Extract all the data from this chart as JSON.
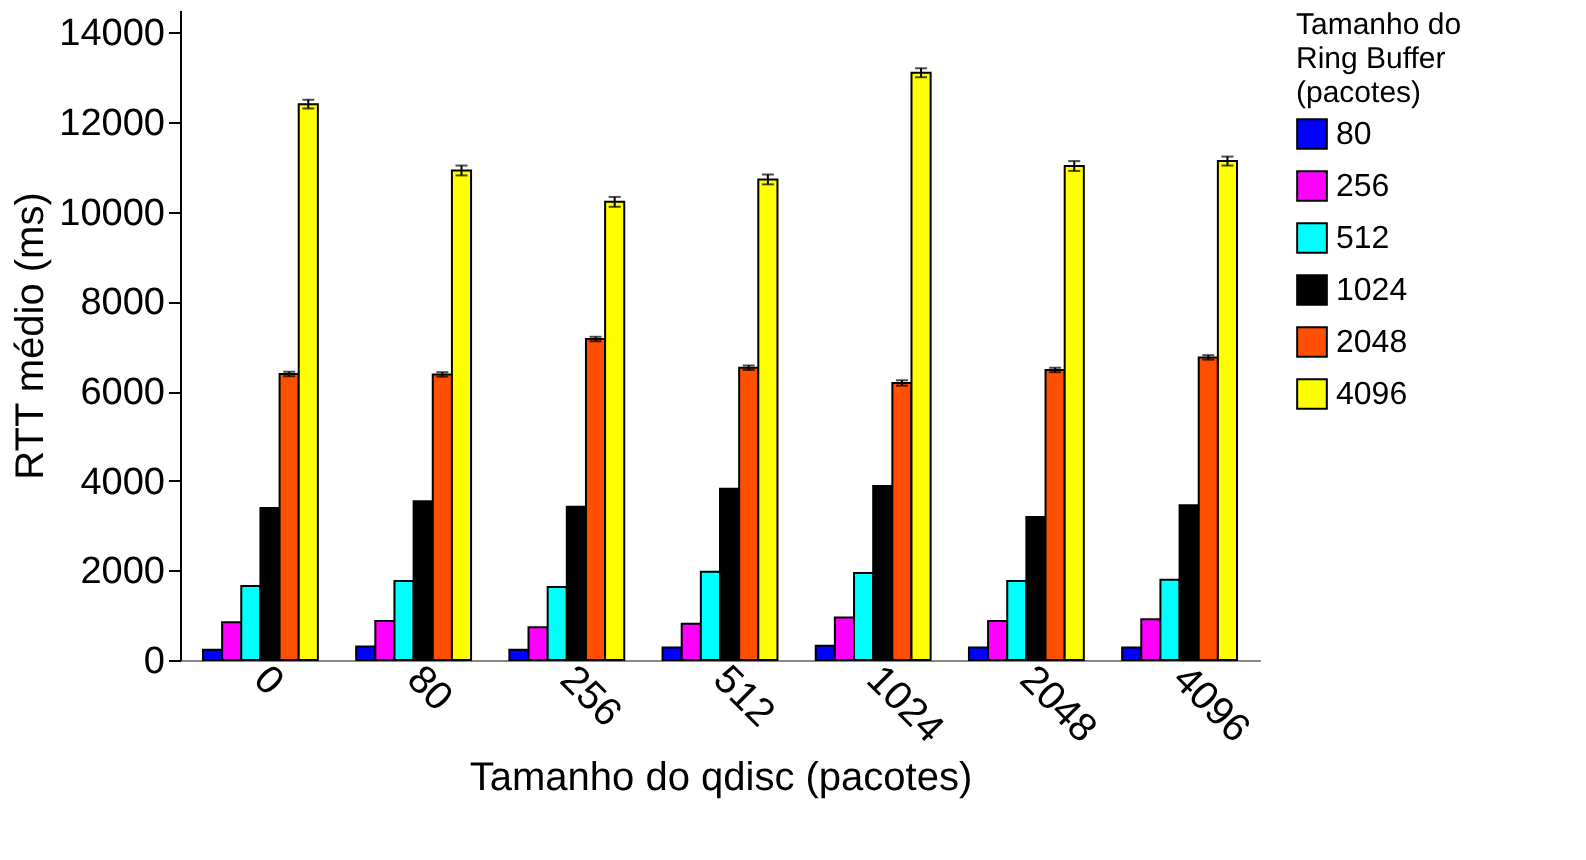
{
  "chart_data": {
    "type": "bar",
    "xlabel": "Tamanho do qdisc (pacotes)",
    "ylabel": "RTT médio (ms)",
    "legend_title": "Tamanho do Ring Buffer (pacotes)",
    "legend": "right",
    "grid": false,
    "categories": [
      "0",
      "80",
      "256",
      "512",
      "1024",
      "2048",
      "4096"
    ],
    "ylim": [
      0,
      14500
    ],
    "yticks": [
      0,
      2000,
      4000,
      6000,
      8000,
      10000,
      12000,
      14000
    ],
    "series": [
      {
        "name": "80",
        "color": "#0000ff",
        "values": [
          230,
          300,
          230,
          280,
          320,
          280,
          280
        ]
      },
      {
        "name": "256",
        "color": "#ff00ff",
        "values": [
          840,
          870,
          730,
          810,
          950,
          870,
          910
        ]
      },
      {
        "name": "512",
        "color": "#00ffff",
        "values": [
          1650,
          1760,
          1630,
          1970,
          1940,
          1760,
          1790
        ]
      },
      {
        "name": "1024",
        "color": "#000000",
        "values": [
          3390,
          3540,
          3420,
          3820,
          3880,
          3190,
          3450
        ]
      },
      {
        "name": "2048",
        "color": "#ff4f00",
        "values": [
          6380,
          6370,
          7160,
          6520,
          6180,
          6470,
          6750
        ],
        "errors": [
          50,
          50,
          50,
          50,
          60,
          50,
          50
        ]
      },
      {
        "name": "4096",
        "color": "#ffff00",
        "values": [
          12400,
          10920,
          10220,
          10720,
          13100,
          11020,
          11130
        ],
        "errors": [
          100,
          110,
          110,
          110,
          100,
          110,
          100
        ]
      }
    ]
  }
}
